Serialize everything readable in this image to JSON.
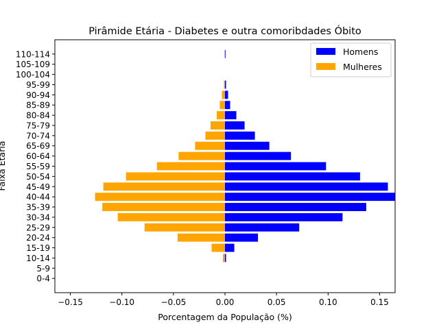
{
  "chart_data": {
    "type": "bar",
    "orientation": "horizontal",
    "title": "Pirâmide Etária - Diabetes e outra comoribdades Óbito",
    "xlabel": "Porcentagem da População (%)",
    "ylabel": "Faixa Etária",
    "xlim": [
      -0.165,
      0.165
    ],
    "xticks": [
      -0.15,
      -0.1,
      -0.05,
      0.0,
      0.05,
      0.1,
      0.15
    ],
    "xtick_labels": [
      "−0.15",
      "−0.10",
      "−0.05",
      "0.00",
      "0.05",
      "0.10",
      "0.15"
    ],
    "grid": false,
    "legend_position": "top-right",
    "categories": [
      "0-4",
      "5-9",
      "10-14",
      "15-19",
      "20-24",
      "25-29",
      "30-34",
      "35-39",
      "40-44",
      "45-49",
      "50-54",
      "55-59",
      "60-64",
      "65-69",
      "70-74",
      "75-79",
      "80-84",
      "85-89",
      "90-94",
      "95-99",
      "100-104",
      "105-109",
      "110-114"
    ],
    "series": [
      {
        "name": "Homens",
        "color": "#0000ff",
        "values": [
          0,
          0,
          0.001,
          0.009,
          0.032,
          0.072,
          0.114,
          0.137,
          0.165,
          0.158,
          0.131,
          0.098,
          0.064,
          0.043,
          0.029,
          0.019,
          0.011,
          0.005,
          0.003,
          0.001,
          0,
          0,
          0.0005
        ]
      },
      {
        "name": "Mulheres",
        "color": "#ffa500",
        "values": [
          0,
          0,
          -0.002,
          -0.013,
          -0.046,
          -0.078,
          -0.104,
          -0.119,
          -0.126,
          -0.118,
          -0.096,
          -0.066,
          -0.045,
          -0.029,
          -0.019,
          -0.014,
          -0.008,
          -0.005,
          -0.003,
          -0.001,
          0,
          0,
          -0.0005
        ]
      }
    ]
  }
}
